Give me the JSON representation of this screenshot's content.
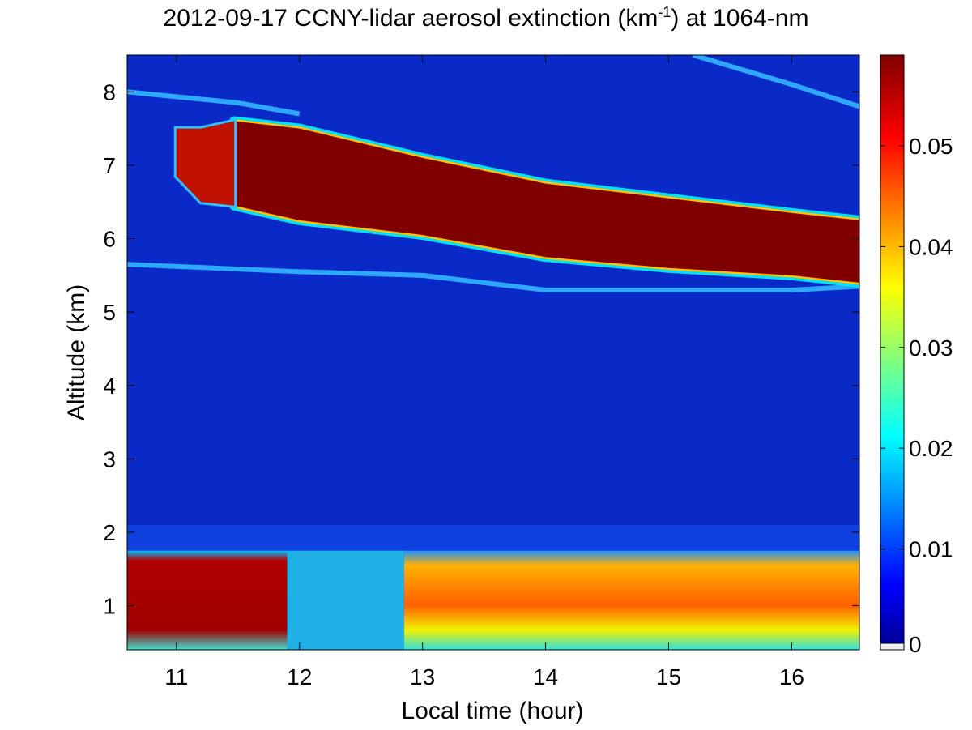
{
  "chart_data": {
    "type": "heatmap",
    "title_prefix": "2012-09-17 CCNY-lidar aerosol extinction (km",
    "title_sup": "-1",
    "title_suffix": ") at 1064-nm",
    "xlabel": "Local time (hour)",
    "ylabel": "Altitude (km)",
    "xlim": [
      10.6,
      16.55
    ],
    "ylim": [
      0.4,
      8.5
    ],
    "xticks": [
      11,
      12,
      13,
      14,
      15,
      16
    ],
    "yticks": [
      1,
      2,
      3,
      4,
      5,
      6,
      7,
      8
    ],
    "colorbar": {
      "range": [
        0,
        0.059
      ],
      "ticks": [
        0,
        0.01,
        0.02,
        0.03,
        0.04,
        0.05
      ],
      "tick_labels": [
        "0",
        "0.01",
        "0.02",
        "0.03",
        "0.04",
        "0.05"
      ],
      "colormap": "jet"
    },
    "layers": [
      {
        "name": "cirrus-thick",
        "x": [
          11.47,
          12.0,
          13.0,
          14.0,
          15.0,
          16.0,
          16.55
        ],
        "top": [
          7.6,
          7.5,
          7.1,
          6.75,
          6.55,
          6.35,
          6.25
        ],
        "bottom": [
          6.45,
          6.25,
          6.05,
          5.75,
          5.6,
          5.5,
          5.4
        ],
        "value": 0.059
      },
      {
        "name": "cirrus-onset",
        "x": [
          11.0,
          11.2,
          11.47
        ],
        "top": [
          7.5,
          7.5,
          7.6
        ],
        "bottom": [
          6.85,
          6.5,
          6.45
        ],
        "value": 0.05
      },
      {
        "name": "upper-thin-layer",
        "x": [
          10.6,
          11.5,
          12.0
        ],
        "center": [
          8.0,
          7.85,
          7.7
        ],
        "value": 0.018
      },
      {
        "name": "upper-right-layer",
        "x": [
          15.2,
          16.0,
          16.55
        ],
        "center": [
          8.5,
          8.1,
          7.8
        ],
        "value": 0.02
      },
      {
        "name": "mid-thin-layer",
        "x": [
          10.6,
          12.0,
          13.0,
          14.0,
          15.0,
          16.0,
          16.55
        ],
        "center": [
          5.65,
          5.55,
          5.5,
          5.3,
          5.3,
          5.3,
          5.35
        ],
        "value": 0.013
      },
      {
        "name": "boundary-layer-left",
        "x": [
          10.6,
          11.9
        ],
        "top": 1.75,
        "bottom": 0.4,
        "value": 0.055
      },
      {
        "name": "boundary-layer-right",
        "x": [
          12.85,
          16.55
        ],
        "top": 1.75,
        "bottom": 0.4,
        "value": 0.045
      }
    ]
  }
}
